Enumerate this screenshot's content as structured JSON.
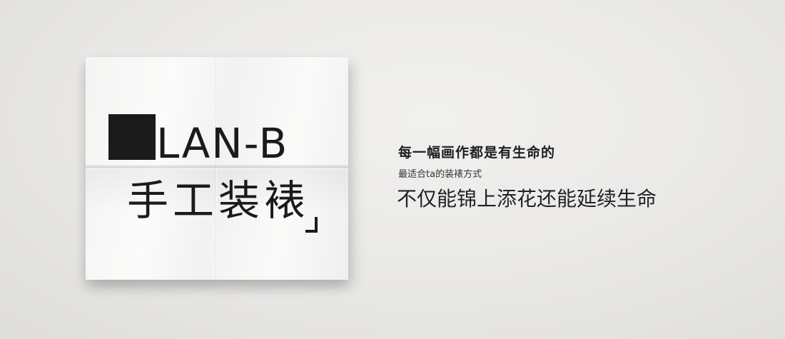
{
  "logo": {
    "brand": "PLAN-B",
    "subtitle": "手工装裱"
  },
  "tagline": {
    "line1": "每一幅画作都是有生命的",
    "line2": "最适合ta的装裱方式",
    "line3": "不仅能锦上添花还能延续生命"
  },
  "colors": {
    "background": "#e9e8e6",
    "paper": "#f6f6f5",
    "ink": "#1b1b1b"
  }
}
